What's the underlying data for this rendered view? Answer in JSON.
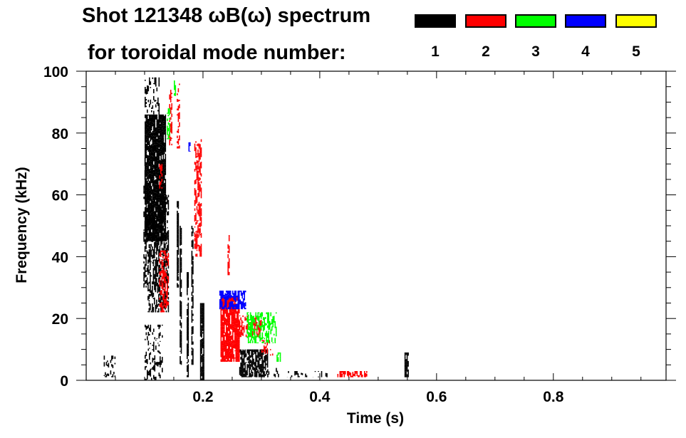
{
  "chart_data": {
    "type": "heatmap",
    "title": "Shot 121348 ωB(ω) spectrum",
    "subtitle": "for toroidal mode number:",
    "xlabel": "Time (s)",
    "ylabel": "Frequency (kHz)",
    "xlim": [
      0.0,
      0.993
    ],
    "ylim": [
      0,
      100
    ],
    "xticks": [
      0.2,
      0.4,
      0.6,
      0.8
    ],
    "xtick_labels": [
      "0.2",
      "0.4",
      "0.6",
      "0.8"
    ],
    "yticks": [
      0,
      20,
      40,
      60,
      80,
      100
    ],
    "ytick_labels": [
      "0",
      "20",
      "40",
      "60",
      "80",
      "100"
    ],
    "grid": false,
    "legend_placement": "top-right",
    "legend": [
      {
        "label": "1",
        "color": "#000000"
      },
      {
        "label": "2",
        "color": "#ff0000"
      },
      {
        "label": "3",
        "color": "#00ff00"
      },
      {
        "label": "4",
        "color": "#0000ff"
      },
      {
        "label": "5",
        "color": "#ffff00"
      }
    ],
    "features": [
      {
        "mode": 1,
        "t": [
          0.1,
          0.135
        ],
        "f": [
          45,
          86
        ],
        "density": 0.9
      },
      {
        "mode": 1,
        "t": [
          0.105,
          0.14
        ],
        "f": [
          22,
          60
        ],
        "density": 0.6
      },
      {
        "mode": 1,
        "t": [
          0.098,
          0.104
        ],
        "f": [
          30,
          72
        ],
        "density": 0.5
      },
      {
        "mode": 1,
        "t": [
          0.1,
          0.125
        ],
        "f": [
          85,
          98
        ],
        "density": 0.25
      },
      {
        "mode": 1,
        "t": [
          0.1,
          0.13
        ],
        "f": [
          0,
          18
        ],
        "density": 0.3
      },
      {
        "mode": 1,
        "t": [
          0.155,
          0.158
        ],
        "f": [
          30,
          58
        ],
        "density": 0.8
      },
      {
        "mode": 1,
        "t": [
          0.16,
          0.163
        ],
        "f": [
          5,
          50
        ],
        "density": 0.8
      },
      {
        "mode": 1,
        "t": [
          0.172,
          0.175
        ],
        "f": [
          1,
          35
        ],
        "density": 0.8
      },
      {
        "mode": 1,
        "t": [
          0.18,
          0.183
        ],
        "f": [
          5,
          50
        ],
        "density": 0.7
      },
      {
        "mode": 1,
        "t": [
          0.195,
          0.201
        ],
        "f": [
          0,
          25
        ],
        "density": 0.9
      },
      {
        "mode": 1,
        "t": [
          0.262,
          0.31
        ],
        "f": [
          1,
          10
        ],
        "density": 0.75
      },
      {
        "mode": 1,
        "t": [
          0.31,
          0.33
        ],
        "f": [
          1,
          4
        ],
        "density": 0.3
      },
      {
        "mode": 1,
        "t": [
          0.34,
          0.42
        ],
        "f": [
          1,
          3
        ],
        "density": 0.15
      },
      {
        "mode": 1,
        "t": [
          0.545,
          0.551
        ],
        "f": [
          1,
          9
        ],
        "density": 0.8
      },
      {
        "mode": 1,
        "t": [
          0.03,
          0.05
        ],
        "f": [
          1,
          8
        ],
        "density": 0.25
      },
      {
        "mode": 2,
        "t": [
          0.23,
          0.262
        ],
        "f": [
          6,
          27
        ],
        "density": 0.85
      },
      {
        "mode": 2,
        "t": [
          0.262,
          0.3
        ],
        "f": [
          14,
          21
        ],
        "density": 0.55
      },
      {
        "mode": 2,
        "t": [
          0.125,
          0.14
        ],
        "f": [
          22,
          42
        ],
        "density": 0.5
      },
      {
        "mode": 2,
        "t": [
          0.125,
          0.13
        ],
        "f": [
          62,
          70
        ],
        "density": 0.6
      },
      {
        "mode": 2,
        "t": [
          0.142,
          0.146
        ],
        "f": [
          76,
          94
        ],
        "density": 0.5
      },
      {
        "mode": 2,
        "t": [
          0.155,
          0.159
        ],
        "f": [
          75,
          96
        ],
        "density": 0.4
      },
      {
        "mode": 2,
        "t": [
          0.185,
          0.196
        ],
        "f": [
          40,
          78
        ],
        "density": 0.6
      },
      {
        "mode": 2,
        "t": [
          0.242,
          0.245
        ],
        "f": [
          34,
          47
        ],
        "density": 0.5
      },
      {
        "mode": 2,
        "t": [
          0.3,
          0.32
        ],
        "f": [
          8,
          13
        ],
        "density": 0.4
      },
      {
        "mode": 2,
        "t": [
          0.43,
          0.48
        ],
        "f": [
          1,
          3
        ],
        "density": 0.6
      },
      {
        "mode": 3,
        "t": [
          0.138,
          0.142
        ],
        "f": [
          78,
          88
        ],
        "density": 0.6
      },
      {
        "mode": 3,
        "t": [
          0.15,
          0.153
        ],
        "f": [
          92,
          97
        ],
        "density": 0.6
      },
      {
        "mode": 3,
        "t": [
          0.275,
          0.325
        ],
        "f": [
          12,
          22
        ],
        "density": 0.5
      },
      {
        "mode": 3,
        "t": [
          0.326,
          0.332
        ],
        "f": [
          6,
          9
        ],
        "density": 0.6
      },
      {
        "mode": 4,
        "t": [
          0.228,
          0.272
        ],
        "f": [
          23,
          29
        ],
        "density": 0.75
      },
      {
        "mode": 4,
        "t": [
          0.175,
          0.177
        ],
        "f": [
          74,
          77
        ],
        "density": 0.9
      }
    ]
  }
}
